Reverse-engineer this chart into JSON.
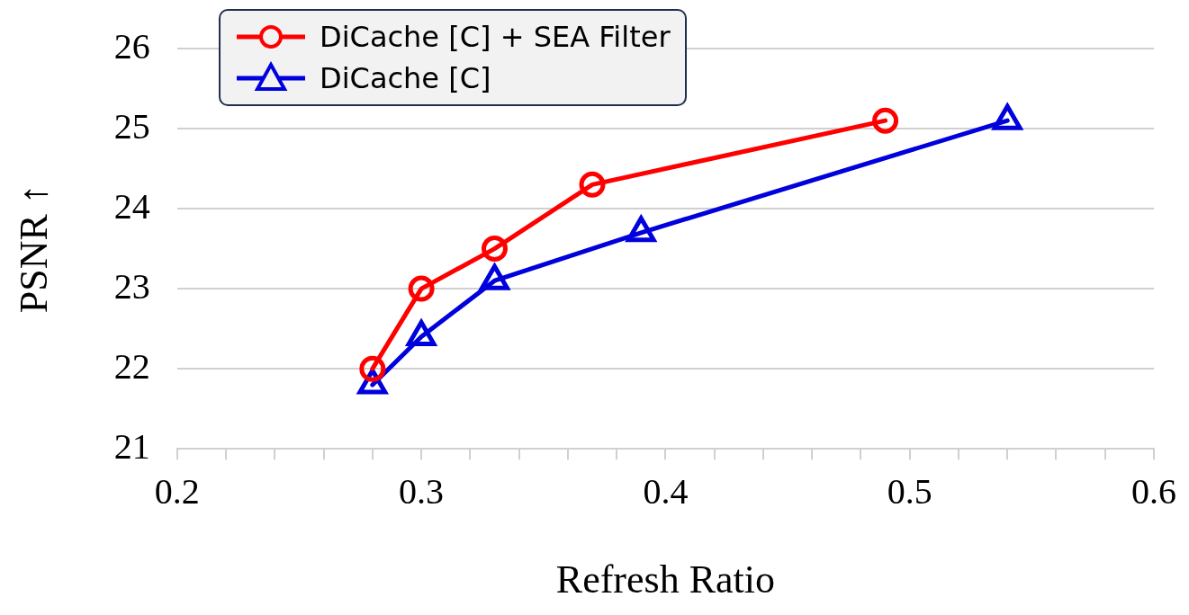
{
  "chart_data": {
    "type": "line",
    "xlabel": "Refresh Ratio",
    "ylabel": "PSNR ↑",
    "xlim": [
      0.2,
      0.6
    ],
    "xticks": [
      0.2,
      {
        "value": 0.22,
        "label": null
      },
      {
        "value": 0.24,
        "label": null
      },
      {
        "value": 0.26,
        "label": null
      },
      {
        "value": 0.28,
        "label": null
      },
      0.3,
      {
        "value": 0.32,
        "label": null
      },
      {
        "value": 0.34,
        "label": null
      },
      {
        "value": 0.36,
        "label": null
      },
      {
        "value": 0.38,
        "label": null
      },
      0.4,
      {
        "value": 0.42,
        "label": null
      },
      {
        "value": 0.44,
        "label": null
      },
      {
        "value": 0.46,
        "label": null
      },
      {
        "value": 0.48,
        "label": null
      },
      0.5,
      {
        "value": 0.52,
        "label": null
      },
      {
        "value": 0.54,
        "label": null
      },
      {
        "value": 0.56,
        "label": null
      },
      {
        "value": 0.58,
        "label": null
      },
      0.6
    ],
    "ylim": [
      21,
      26
    ],
    "yticks": [
      21,
      22,
      23,
      24,
      25,
      26
    ],
    "grid": "y",
    "legend": "top left",
    "line_style": "solid",
    "series": [
      {
        "name": "DiCache [C] + SEA Filter",
        "color": "#ff0000",
        "marker": "circle",
        "x": [
          0.28,
          0.3,
          0.33,
          0.37,
          0.49
        ],
        "values": [
          22,
          23,
          23.5,
          24.3,
          25.1
        ]
      },
      {
        "name": "DiCache [C]",
        "color": "#0000dd",
        "marker": "triangle",
        "x": [
          0.28,
          0.3,
          0.33,
          0.39,
          0.54
        ],
        "values": [
          21.8,
          22.4,
          23.1,
          23.7,
          25.1
        ]
      }
    ]
  }
}
